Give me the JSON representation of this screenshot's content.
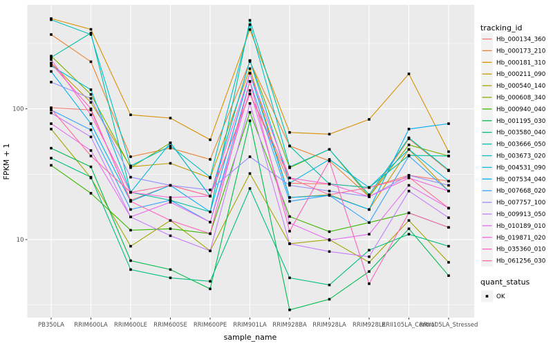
{
  "chart_data": {
    "type": "line",
    "title": "",
    "xlabel": "sample_name",
    "ylabel": "FPKM + 1",
    "y_scale": "log10",
    "ylim": [
      2.5,
      630
    ],
    "grid": true,
    "panel_bg": "#EBEBEB",
    "grid_color": "#FFFFFF",
    "legend_key_bg": "#F2F2F2",
    "point_color": "#000000",
    "point_shape": "square",
    "y_ticks": [
      {
        "label": "100",
        "value": 100
      },
      {
        "label": "10",
        "value": 10
      }
    ],
    "y_minor_breaks": [
      316.2,
      31.62,
      3.162
    ],
    "categories": [
      "PB350LA",
      "RRIM600LA",
      "RRIM600LE",
      "RRIM600SE",
      "RRIM600PE",
      "RRIM901LA",
      "RRIM928BA",
      "RRIM928LA",
      "RRIM928LE",
      "RRII105LA_Control",
      "RRII105LA_Stressed"
    ],
    "legend_title": "tracking_id",
    "series": [
      {
        "name": "Hb_000134_360",
        "color": "#F8766D",
        "values": [
          102,
          98,
          20,
          26,
          21.5,
          130,
          27,
          26.6,
          25,
          31,
          28
        ]
      },
      {
        "name": "Hb_000173_210",
        "color": "#EA8331",
        "values": [
          370,
          229,
          43,
          50,
          41,
          230,
          52,
          40,
          21.3,
          59,
          33.6
        ]
      },
      {
        "name": "Hb_000181_310",
        "color": "#D89000",
        "values": [
          490,
          405,
          90,
          85,
          58,
          404,
          66,
          64,
          83,
          185,
          47
        ]
      },
      {
        "name": "Hb_000211_090",
        "color": "#C09B00",
        "values": [
          224,
          112,
          36,
          38.3,
          29.6,
          203,
          21,
          22,
          17,
          49,
          23.5
        ]
      },
      {
        "name": "Hb_000540_140",
        "color": "#A3A500",
        "values": [
          70,
          29.6,
          8.9,
          14,
          8.2,
          32,
          9.3,
          10,
          6.7,
          14,
          6.7
        ]
      },
      {
        "name": "Hb_000608_340",
        "color": "#7CAE00",
        "values": [
          253,
          129,
          35.5,
          55,
          21.5,
          234,
          35.4,
          49,
          21.3,
          53,
          43.6
        ]
      },
      {
        "name": "Hb_000940_040",
        "color": "#39B600",
        "values": [
          37,
          22.6,
          11.8,
          12.1,
          11.1,
          94,
          15,
          11.5,
          13.5,
          16,
          12.4
        ]
      },
      {
        "name": "Hb_001195_030",
        "color": "#00BB4E",
        "values": [
          50,
          36,
          6.9,
          5.9,
          4.2,
          81,
          2.9,
          3.5,
          5.7,
          12.1,
          5.3
        ]
      },
      {
        "name": "Hb_003580_040",
        "color": "#00BF7D",
        "values": [
          42,
          30,
          5.9,
          5.1,
          4.8,
          24.6,
          5.1,
          4.5,
          8.3,
          11,
          8.9
        ]
      },
      {
        "name": "Hb_003666_050",
        "color": "#00C1A3",
        "values": [
          247,
          380,
          23,
          20,
          16.3,
          475,
          52,
          26.6,
          25,
          44,
          43.6
        ]
      },
      {
        "name": "Hb_003673_020",
        "color": "#00BFC4",
        "values": [
          480,
          370,
          36.6,
          52,
          30,
          440,
          36,
          49,
          22,
          60,
          34
        ]
      },
      {
        "name": "Hb_004531_090",
        "color": "#00BAE0",
        "values": [
          213,
          140,
          23,
          55,
          21.5,
          234,
          27,
          41,
          25,
          49,
          28
        ]
      },
      {
        "name": "Hb_007534_040",
        "color": "#00B0F6",
        "values": [
          193,
          77,
          19.6,
          26,
          16.3,
          187,
          21,
          21.8,
          17,
          70,
          77
        ]
      },
      {
        "name": "Hb_007668_020",
        "color": "#35A2FF",
        "values": [
          98,
          69,
          17,
          20,
          13.6,
          162,
          19.6,
          21.8,
          13.5,
          43.6,
          23.5
        ]
      },
      {
        "name": "Hb_007757_100",
        "color": "#9590FF",
        "values": [
          160,
          120,
          30,
          26,
          24,
          43,
          26,
          23.5,
          21.3,
          31,
          26
        ]
      },
      {
        "name": "Hb_009913_050",
        "color": "#C77CFF",
        "values": [
          93,
          61,
          14.9,
          10.7,
          8.2,
          110,
          9.3,
          8.1,
          7.4,
          23.5,
          14.7
        ]
      },
      {
        "name": "Hb_010189_010",
        "color": "#E76BF3",
        "values": [
          77,
          48,
          14.9,
          19.3,
          13.6,
          138,
          13.4,
          9.9,
          11,
          26,
          17.4
        ]
      },
      {
        "name": "Hb_019871_020",
        "color": "#FA62DB",
        "values": [
          238,
          90,
          23,
          21,
          21.5,
          187,
          29.6,
          26.6,
          21.3,
          29.6,
          23.5
        ]
      },
      {
        "name": "Hb_035360_010",
        "color": "#FF62BC",
        "values": [
          222,
          100,
          19.6,
          14,
          11.1,
          162,
          11.6,
          40,
          4.6,
          16,
          12.4
        ]
      },
      {
        "name": "Hb_061256_030",
        "color": "#FF6A98",
        "values": [
          100,
          43.6,
          23,
          26,
          21.5,
          130,
          29.6,
          22,
          25,
          30,
          17.4
        ]
      }
    ],
    "quant_legend": {
      "title": "quant_status",
      "items": [
        {
          "label": "OK",
          "marker": "black-square"
        }
      ]
    }
  }
}
